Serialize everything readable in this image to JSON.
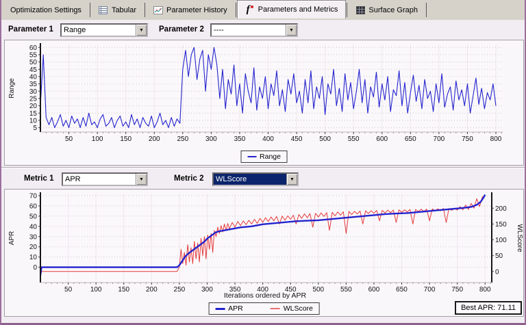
{
  "tabs": {
    "items": [
      {
        "label": "Optimization Settings",
        "icon": "none",
        "active": false
      },
      {
        "label": "Tabular",
        "icon": "table-icon",
        "active": false
      },
      {
        "label": "Parameter History",
        "icon": "line-chart-icon",
        "active": false
      },
      {
        "label": "Parameters and Metrics",
        "icon": "fi-logo-icon",
        "active": true
      },
      {
        "label": "Surface Graph",
        "icon": "surface-grid-icon",
        "active": false
      }
    ]
  },
  "parameter_controls": {
    "param1_label": "Parameter 1",
    "param1_value": "Range",
    "param2_label": "Parameter 2",
    "param2_value": "----"
  },
  "metric_controls": {
    "metric1_label": "Metric 1",
    "metric1_value": "APR",
    "metric2_label": "Metric 2",
    "metric2_value": "WLScore",
    "metric2_selected": true
  },
  "colors": {
    "series_blue": "#2323cd",
    "series_red": "#e43b3b",
    "selected_combo_bg": "#0b246b",
    "window_border": "#9c6f9c"
  },
  "chart_data": [
    {
      "type": "line",
      "title": "",
      "xlabel": "",
      "xlim": [
        0,
        812
      ],
      "x_ticks": [
        50,
        100,
        150,
        200,
        250,
        300,
        350,
        400,
        450,
        500,
        550,
        600,
        650,
        700,
        750,
        800
      ],
      "x_minor_step": 10,
      "yaxis": {
        "label": "Range",
        "lim": [
          2,
          62
        ],
        "ticks": [
          5,
          10,
          15,
          20,
          25,
          30,
          35,
          40,
          45,
          50,
          55,
          60
        ]
      },
      "legend": {
        "position": "bottom-center",
        "entries": [
          {
            "label": "Range",
            "color": "#2323cd"
          }
        ]
      },
      "series": [
        {
          "name": "Range",
          "axis": "left",
          "color": "#2323cd",
          "width": 1.1,
          "x_start": 0,
          "x_step": 5,
          "y": [
            20,
            55,
            12,
            7,
            12,
            5,
            9,
            14,
            6,
            10,
            5,
            13,
            8,
            11,
            5,
            12,
            6,
            15,
            7,
            9,
            5,
            11,
            14,
            6,
            8,
            12,
            5,
            10,
            13,
            6,
            9,
            5,
            14,
            7,
            11,
            5,
            12,
            8,
            6,
            13,
            5,
            9,
            15,
            7,
            10,
            5,
            12,
            6,
            11,
            8,
            45,
            58,
            40,
            55,
            60,
            38,
            52,
            58,
            30,
            55,
            45,
            60,
            48,
            25,
            45,
            18,
            38,
            28,
            48,
            20,
            35,
            15,
            42,
            30,
            22,
            46,
            17,
            33,
            25,
            40,
            18,
            35,
            27,
            44,
            20,
            31,
            16,
            38,
            28,
            42,
            22,
            30,
            15,
            38,
            22,
            44,
            18,
            33,
            25,
            40,
            14,
            35,
            28,
            45,
            20,
            32,
            16,
            42,
            24,
            36,
            18,
            30,
            45,
            22,
            38,
            15,
            33,
            26,
            43,
            19,
            35,
            24,
            40,
            16,
            31,
            27,
            44,
            20,
            36,
            15,
            29,
            41,
            23,
            34,
            18,
            38,
            25,
            30,
            16,
            35,
            22,
            42,
            19,
            28,
            33,
            17,
            37,
            24,
            31,
            20,
            35,
            15,
            27,
            39,
            21,
            32,
            18,
            29,
            24,
            35,
            20
          ]
        }
      ]
    },
    {
      "type": "line",
      "title": "",
      "xlabel": "Iterations ordered by APR",
      "annotation": "Best APR: 71.11",
      "xlim": [
        0,
        812
      ],
      "x_ticks": [
        50,
        100,
        150,
        200,
        250,
        300,
        350,
        400,
        450,
        500,
        550,
        600,
        650,
        700,
        750,
        800
      ],
      "x_minor_step": 10,
      "yaxis": {
        "label": "APR",
        "lim": [
          -15,
          72
        ],
        "ticks": [
          0,
          10,
          20,
          30,
          40,
          50,
          60,
          70
        ]
      },
      "yaxis2": {
        "label": "WLScore",
        "lim": [
          -35,
          246
        ],
        "ticks": [
          0,
          50,
          100,
          150,
          200
        ]
      },
      "legend": {
        "position": "bottom-center",
        "entries": [
          {
            "label": "APR",
            "color": "#2323cd"
          },
          {
            "label": "WLScore",
            "color": "#e87070"
          }
        ]
      },
      "series": [
        {
          "name": "WLScore",
          "axis": "right",
          "color": "#e43b3b",
          "width": 1,
          "x": [
            0,
            2,
            246,
            250,
            253,
            256,
            259,
            262,
            265,
            268,
            271,
            274,
            277,
            280,
            283,
            286,
            289,
            292,
            295,
            298,
            301,
            304,
            307,
            310,
            313,
            316,
            319,
            322,
            325,
            328,
            331,
            334,
            337,
            340,
            345,
            350,
            355,
            360,
            365,
            370,
            375,
            380,
            385,
            390,
            395,
            400,
            405,
            410,
            415,
            420,
            425,
            430,
            435,
            440,
            445,
            450,
            455,
            460,
            465,
            470,
            475,
            480,
            485,
            490,
            495,
            500,
            505,
            510,
            515,
            520,
            525,
            530,
            535,
            540,
            545,
            550,
            555,
            560,
            565,
            570,
            575,
            580,
            585,
            590,
            595,
            600,
            605,
            610,
            615,
            620,
            625,
            630,
            635,
            640,
            645,
            650,
            655,
            660,
            665,
            670,
            675,
            680,
            685,
            690,
            695,
            700,
            705,
            710,
            715,
            720,
            725,
            730,
            735,
            740,
            745,
            750,
            755,
            760,
            765,
            770,
            775,
            780,
            785,
            790,
            795,
            800
          ],
          "y": [
            -15,
            0,
            0,
            15,
            70,
            25,
            60,
            20,
            85,
            30,
            75,
            25,
            95,
            40,
            90,
            30,
            105,
            50,
            110,
            40,
            115,
            70,
            120,
            60,
            130,
            110,
            140,
            120,
            145,
            125,
            150,
            130,
            152,
            135,
            155,
            140,
            158,
            145,
            160,
            148,
            162,
            150,
            165,
            152,
            168,
            155,
            170,
            158,
            172,
            160,
            174,
            150,
            175,
            162,
            176,
            165,
            178,
            150,
            180,
            168,
            182,
            170,
            183,
            140,
            184,
            172,
            185,
            174,
            186,
            130,
            187,
            176,
            188,
            178,
            189,
            120,
            190,
            180,
            190,
            182,
            191,
            150,
            192,
            183,
            192,
            184,
            193,
            160,
            193,
            185,
            194,
            186,
            194,
            155,
            195,
            187,
            195,
            188,
            196,
            150,
            196,
            189,
            197,
            190,
            197,
            160,
            198,
            191,
            198,
            192,
            199,
            155,
            199,
            193,
            200,
            194,
            205,
            195,
            210,
            196,
            215,
            200,
            230,
            205,
            235,
            240
          ]
        },
        {
          "name": "APR",
          "axis": "left",
          "color": "#2323cd",
          "width": 2.4,
          "x": [
            0,
            2,
            246,
            250,
            255,
            260,
            265,
            270,
            275,
            280,
            285,
            290,
            295,
            300,
            305,
            310,
            315,
            320,
            330,
            340,
            360,
            380,
            400,
            420,
            440,
            460,
            480,
            500,
            520,
            540,
            560,
            580,
            600,
            620,
            640,
            660,
            680,
            700,
            720,
            740,
            760,
            775,
            785,
            792,
            797,
            800
          ],
          "y": [
            -8,
            0,
            0,
            2,
            6,
            10,
            13,
            15,
            17,
            19,
            21,
            23,
            25,
            28,
            30,
            32,
            34,
            35,
            36,
            37,
            39,
            40,
            42,
            43,
            44,
            45,
            45.5,
            46,
            47,
            48,
            49,
            50,
            51,
            52,
            52.5,
            53,
            54,
            55,
            56,
            57,
            58,
            59,
            61,
            64,
            68,
            71
          ]
        }
      ]
    }
  ]
}
